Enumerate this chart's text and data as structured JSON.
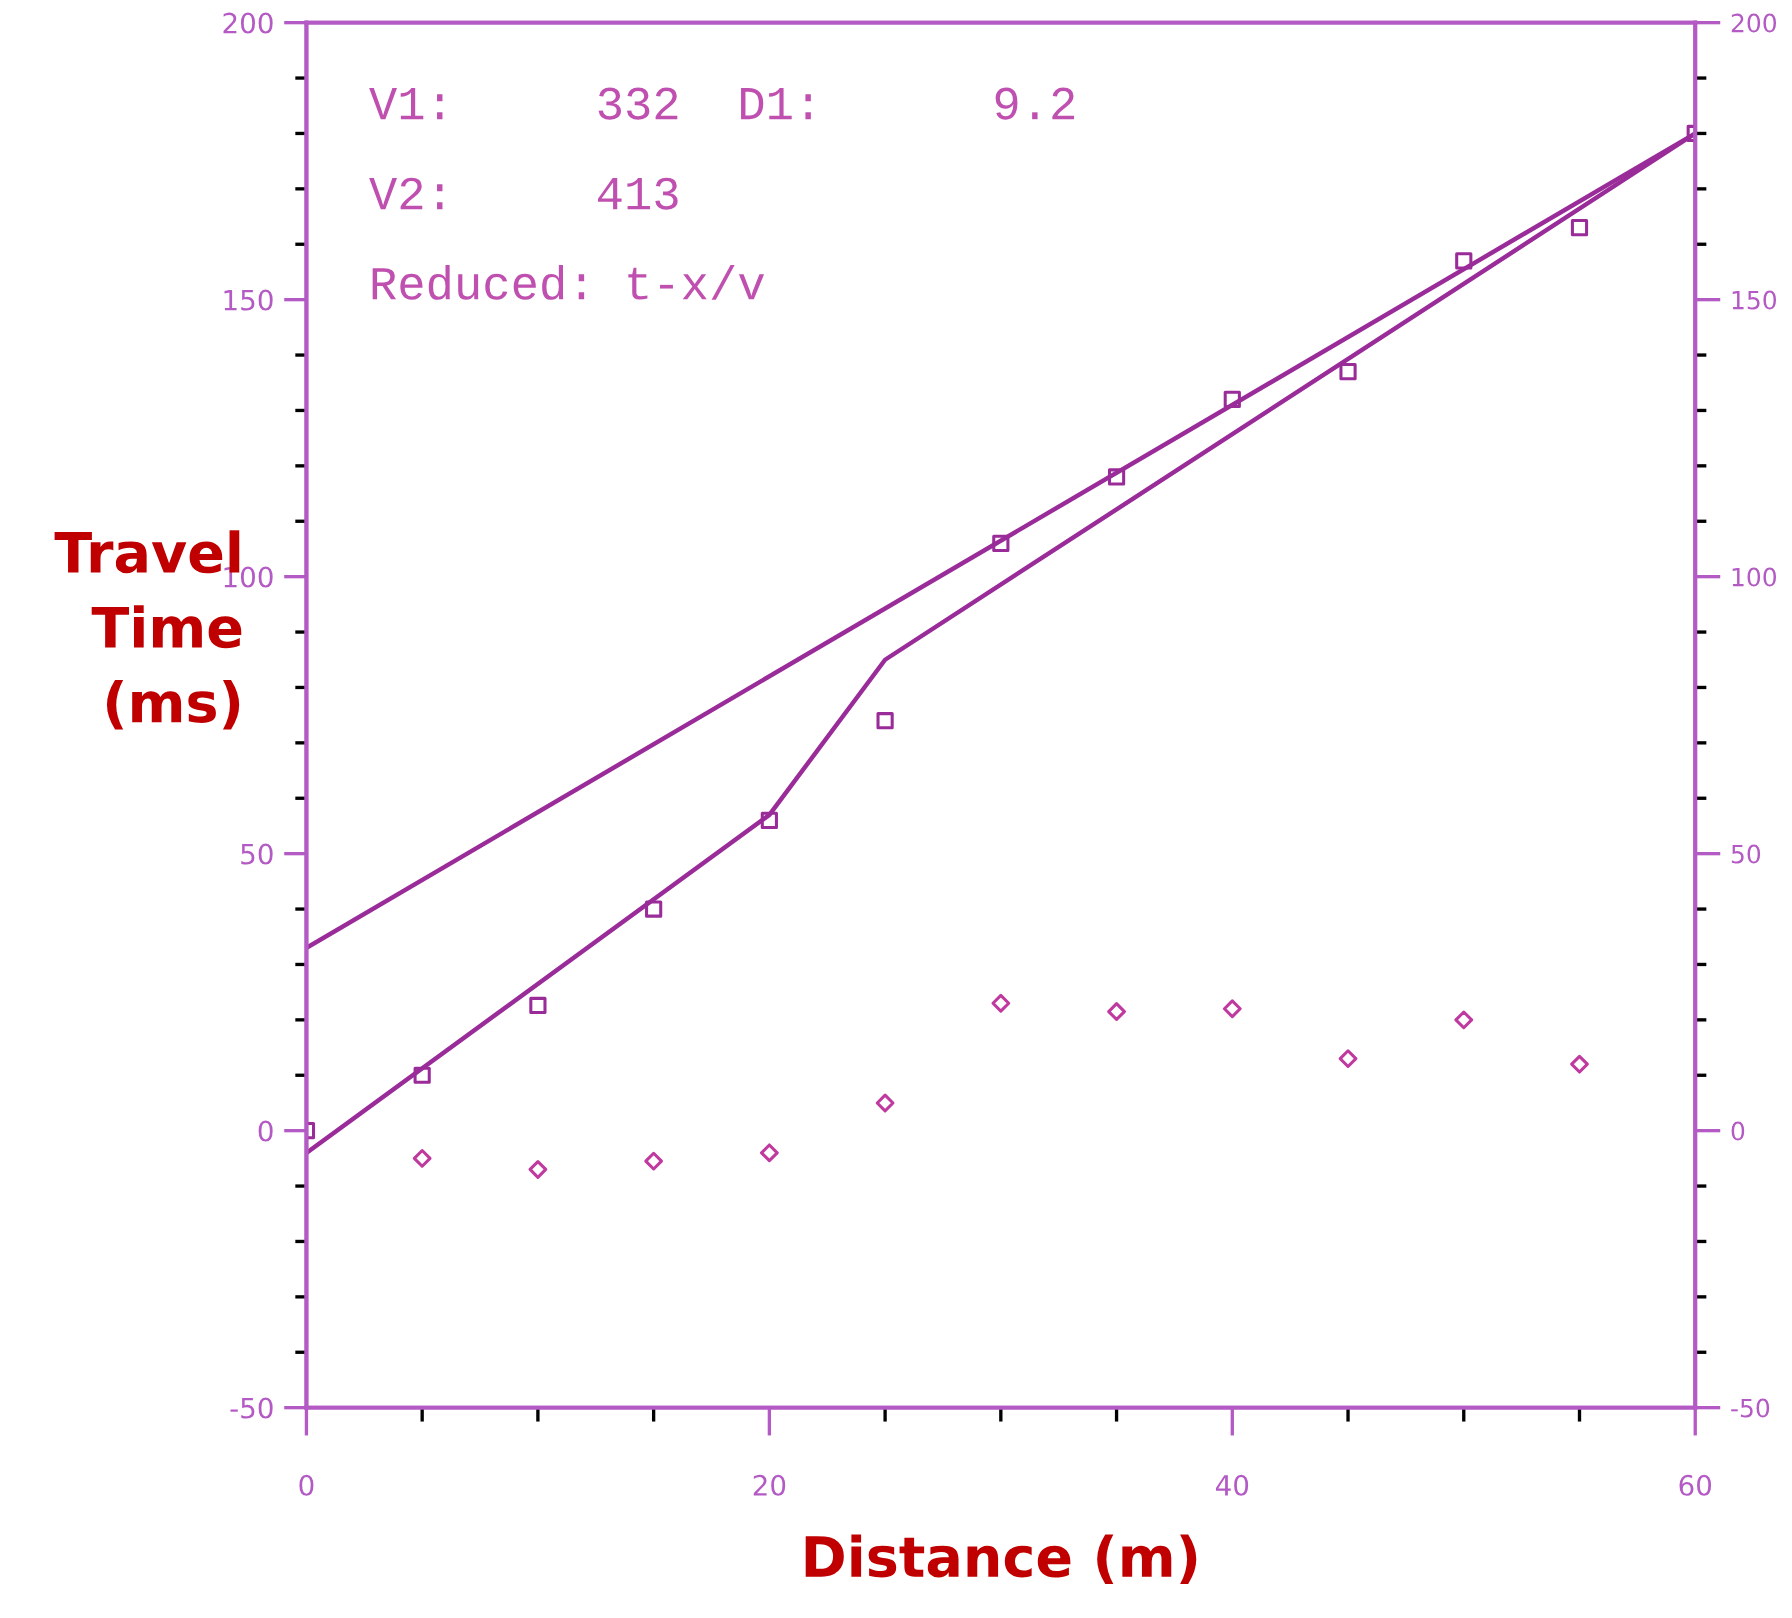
{
  "chart_data": {
    "type": "scatter",
    "xlabel": "Distance (m)",
    "ylabel": "Travel\nTime\n(ms)",
    "annotations": [
      "V1:     332  D1:      9.2",
      "V2:     413",
      "Reduced: t-x/v"
    ],
    "xlim": [
      0,
      60
    ],
    "ylim": [
      -50,
      200
    ],
    "xticks": [
      0,
      {
        "value": 5,
        "label": null
      },
      {
        "value": 10,
        "label": null
      },
      {
        "value": 15,
        "label": null
      },
      20,
      {
        "value": 25,
        "label": null
      },
      {
        "value": 30,
        "label": null
      },
      {
        "value": 35,
        "label": null
      },
      40,
      {
        "value": 45,
        "label": null
      },
      {
        "value": 50,
        "label": null
      },
      {
        "value": 55,
        "label": null
      },
      60
    ],
    "yticks": [
      -50,
      {
        "value": -40,
        "label": null
      },
      {
        "value": -30,
        "label": null
      },
      {
        "value": -20,
        "label": null
      },
      {
        "value": -10,
        "label": null
      },
      0,
      {
        "value": 10,
        "label": null
      },
      {
        "value": 20,
        "label": null
      },
      {
        "value": 30,
        "label": null
      },
      {
        "value": 40,
        "label": null
      },
      50,
      {
        "value": 60,
        "label": null
      },
      {
        "value": 70,
        "label": null
      },
      {
        "value": 80,
        "label": null
      },
      {
        "value": 90,
        "label": null
      },
      100,
      {
        "value": 110,
        "label": null
      },
      {
        "value": 120,
        "label": null
      },
      {
        "value": 130,
        "label": null
      },
      {
        "value": 140,
        "label": null
      },
      150,
      {
        "value": 160,
        "label": null
      },
      {
        "value": 170,
        "label": null
      },
      {
        "value": 180,
        "label": null
      },
      {
        "value": 190,
        "label": null
      },
      200
    ],
    "y2lim": [
      -50,
      200
    ],
    "y2ticks": [
      -50,
      {
        "value": -40,
        "label": null
      },
      {
        "value": -30,
        "label": null
      },
      {
        "value": -20,
        "label": null
      },
      {
        "value": -10,
        "label": null
      },
      0,
      {
        "value": 10,
        "label": null
      },
      {
        "value": 20,
        "label": null
      },
      {
        "value": 30,
        "label": null
      },
      {
        "value": 40,
        "label": null
      },
      50,
      {
        "value": 60,
        "label": null
      },
      {
        "value": 70,
        "label": null
      },
      {
        "value": 80,
        "label": null
      },
      {
        "value": 90,
        "label": null
      },
      100,
      {
        "value": 110,
        "label": null
      },
      {
        "value": 120,
        "label": null
      },
      {
        "value": 130,
        "label": null
      },
      {
        "value": 140,
        "label": null
      },
      150,
      {
        "value": 160,
        "label": null
      },
      {
        "value": 170,
        "label": null
      },
      {
        "value": 180,
        "label": null
      },
      {
        "value": 190,
        "label": null
      },
      200
    ],
    "grid": false,
    "legend": false,
    "series": [
      {
        "type": "line",
        "color": "#9a2c9a",
        "marker": "none",
        "line_style": "solid",
        "x": [
          0,
          60
        ],
        "values": [
          33,
          180
        ]
      },
      {
        "type": "line",
        "color": "#9a2c9a",
        "marker": "none",
        "line_style": "solid",
        "x": [
          0,
          20,
          25,
          60
        ],
        "values": [
          -4,
          57,
          85,
          180
        ]
      },
      {
        "color": "#9a2c9a",
        "marker": "square",
        "x": [
          0,
          5,
          10,
          15,
          20,
          25,
          30,
          35,
          40,
          45,
          50,
          55,
          60
        ],
        "values": [
          0,
          10,
          22.6,
          40,
          56,
          74,
          106,
          118,
          132,
          137,
          157,
          163,
          180
        ]
      },
      {
        "color": "#c0399f",
        "marker": "diamond",
        "x": [
          5,
          10,
          15,
          20,
          25,
          30,
          35,
          40,
          45,
          50,
          55
        ],
        "values": [
          -5,
          -7,
          -5.5,
          -4,
          5,
          23,
          21.5,
          22,
          13,
          20,
          12
        ]
      }
    ]
  }
}
